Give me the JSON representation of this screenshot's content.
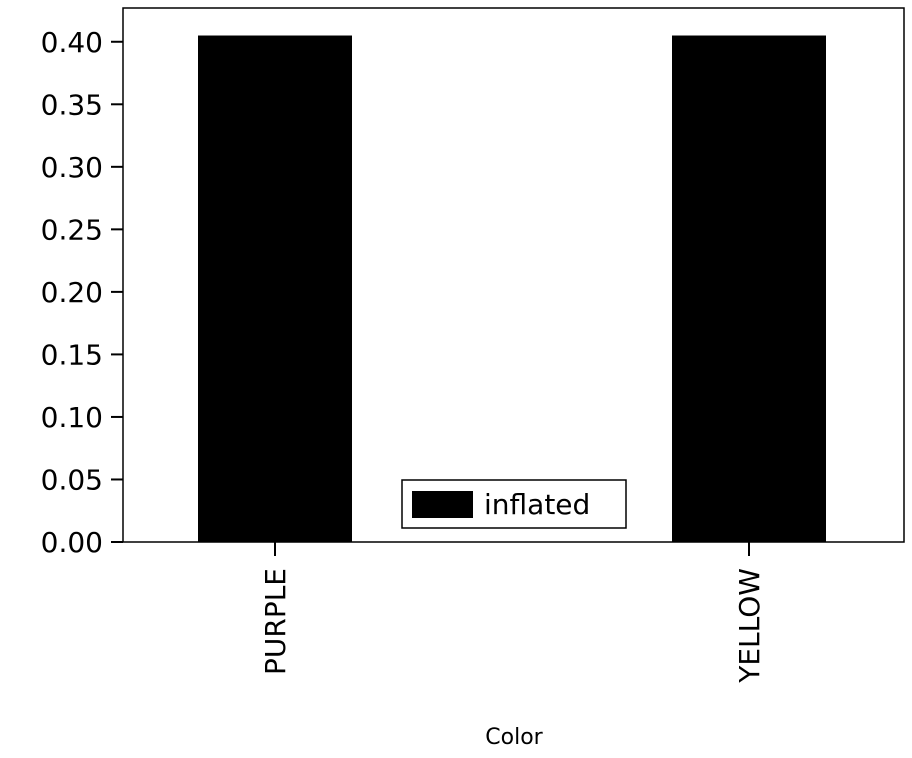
{
  "chart_data": {
    "type": "bar",
    "categories": [
      "PURPLE",
      "YELLOW"
    ],
    "series": [
      {
        "name": "inflated",
        "values": [
          0.405,
          0.405
        ],
        "color": "#000000"
      }
    ],
    "title": "",
    "xlabel": "Color",
    "ylabel": "",
    "ylim": [
      0,
      0.427
    ],
    "yticks": [
      "0.00",
      "0.05",
      "0.10",
      "0.15",
      "0.20",
      "0.25",
      "0.30",
      "0.35",
      "0.40"
    ],
    "grid": false,
    "legend_position": "bottom-center"
  }
}
